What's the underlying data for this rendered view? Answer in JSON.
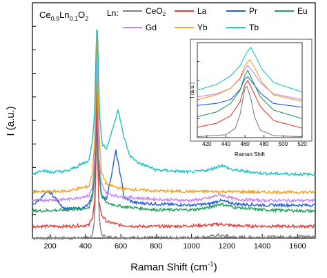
{
  "chart_data": [
    {
      "type": "line",
      "formula": [
        "Ce",
        "0.9",
        "Ln",
        "0.1",
        "O",
        "2"
      ],
      "legend_prefix": "Ln:",
      "xlabel": "Raman Shift (cm",
      "xlabel_sup": "-1",
      "xlabel_close": ")",
      "ylabel": "I (a.u.)",
      "xlim": [
        100,
        1700
      ],
      "ylim": [
        0,
        10
      ],
      "x_ticks": [
        200,
        400,
        600,
        800,
        1000,
        1200,
        1400,
        1600
      ],
      "y_ticks_labeled": false,
      "grid": false,
      "legend_location": "top",
      "series": [
        {
          "name": "CeO2",
          "label_main": "CeO",
          "label_sub": "2",
          "color": "#7f7f7f",
          "baseline": 0.0,
          "x": [
            100,
            300,
            420,
            440,
            452,
            460,
            465,
            470,
            478,
            490,
            520,
            600,
            800,
            1000,
            1100,
            1150,
            1180,
            1250,
            1400,
            1550,
            1600,
            1700
          ],
          "y": [
            0.0,
            0.0,
            0.02,
            0.15,
            0.8,
            3.4,
            8.4,
            3.4,
            0.8,
            0.15,
            0.04,
            0.02,
            0.02,
            0.02,
            0.06,
            0.12,
            0.08,
            0.04,
            0.04,
            0.06,
            0.08,
            0.05
          ]
        },
        {
          "name": "La",
          "color": "#e53935",
          "baseline": 0.45,
          "x": [
            100,
            300,
            420,
            440,
            452,
            460,
            463,
            468,
            476,
            490,
            520,
            600,
            700,
            900,
            1100,
            1160,
            1250,
            1500,
            1700
          ],
          "y": [
            0.5,
            0.5,
            0.55,
            0.9,
            1.6,
            3.6,
            8.0,
            3.7,
            1.6,
            1.0,
            0.7,
            0.55,
            0.5,
            0.5,
            0.55,
            0.6,
            0.52,
            0.5,
            0.5
          ]
        },
        {
          "name": "Pr",
          "color": "#1f5bd6",
          "baseline": 1.5,
          "x": [
            100,
            150,
            190,
            230,
            280,
            380,
            420,
            440,
            452,
            460,
            464,
            468,
            476,
            490,
            520,
            550,
            572,
            595,
            620,
            680,
            800,
            1000,
            1100,
            1160,
            1250,
            1400,
            1700
          ],
          "y": [
            1.4,
            1.7,
            2.0,
            1.7,
            1.25,
            1.25,
            1.45,
            1.9,
            3.0,
            6.0,
            8.5,
            6.5,
            3.0,
            1.8,
            1.7,
            2.8,
            3.7,
            2.8,
            1.7,
            1.5,
            1.45,
            1.4,
            1.45,
            1.6,
            1.45,
            1.4,
            1.4
          ]
        },
        {
          "name": "Eu",
          "color": "#1e9e5a",
          "baseline": 1.15,
          "x": [
            100,
            300,
            420,
            440,
            452,
            460,
            464,
            468,
            476,
            490,
            520,
            600,
            800,
            1000,
            1100,
            1160,
            1250,
            1400,
            1700
          ],
          "y": [
            1.15,
            1.2,
            1.3,
            1.7,
            2.8,
            5.5,
            8.2,
            5.5,
            2.8,
            1.8,
            1.5,
            1.35,
            1.2,
            1.2,
            1.3,
            1.45,
            1.3,
            1.2,
            1.15
          ]
        },
        {
          "name": "Gd",
          "color": "#c77ff0",
          "baseline": 1.6,
          "x": [
            100,
            300,
            420,
            440,
            452,
            460,
            464,
            468,
            476,
            490,
            520,
            600,
            800,
            1000,
            1100,
            1160,
            1250,
            1400,
            1700
          ],
          "y": [
            1.6,
            1.65,
            1.8,
            2.2,
            3.4,
            6.2,
            8.5,
            6.2,
            3.4,
            2.3,
            1.9,
            1.75,
            1.65,
            1.6,
            1.7,
            1.85,
            1.65,
            1.6,
            1.6
          ]
        },
        {
          "name": "Yb",
          "color": "#f0a020",
          "baseline": 1.95,
          "x": [
            100,
            300,
            420,
            440,
            452,
            460,
            465,
            470,
            478,
            490,
            520,
            600,
            800,
            1000,
            1200,
            1400,
            1700
          ],
          "y": [
            1.95,
            2.0,
            2.2,
            2.8,
            4.2,
            7.0,
            8.9,
            7.0,
            4.2,
            2.8,
            2.3,
            2.1,
            2.0,
            1.98,
            1.98,
            1.95,
            1.95
          ]
        },
        {
          "name": "Tb",
          "color": "#19c4c4",
          "baseline": 2.9,
          "x": [
            100,
            150,
            200,
            300,
            420,
            440,
            452,
            460,
            466,
            472,
            480,
            495,
            520,
            560,
            585,
            610,
            650,
            700,
            800,
            1000,
            1100,
            1170,
            1230,
            1400,
            1700
          ],
          "y": [
            2.7,
            2.9,
            2.8,
            2.85,
            3.3,
            4.2,
            5.5,
            8.0,
            9.3,
            7.8,
            5.2,
            4.0,
            3.8,
            4.8,
            5.5,
            4.5,
            3.5,
            3.2,
            2.9,
            2.8,
            2.9,
            3.1,
            2.9,
            2.75,
            2.7
          ]
        }
      ]
    },
    {
      "type": "line",
      "ylabel": "I (a.u.)",
      "xlabel": "Raman Shift",
      "xlim": [
        410,
        520
      ],
      "ylim": [
        0,
        10
      ],
      "x_ticks": [
        420,
        440,
        460,
        480,
        500,
        520
      ],
      "y_ticks_labeled": false,
      "series": [
        {
          "name": "CeO2",
          "color": "#7f7f7f",
          "x": [
            410,
            440,
            450,
            455,
            460,
            462,
            466,
            470,
            476,
            490,
            520
          ],
          "y": [
            0.1,
            0.3,
            1.0,
            2.5,
            5.2,
            5.4,
            4.2,
            2.2,
            0.8,
            0.2,
            0.1
          ]
        },
        {
          "name": "La",
          "color": "#e53935",
          "x": [
            410,
            430,
            445,
            455,
            460,
            463,
            468,
            476,
            490,
            520
          ],
          "y": [
            1.1,
            1.5,
            2.3,
            3.8,
            5.6,
            6.0,
            5.0,
            3.3,
            1.8,
            1.0
          ]
        },
        {
          "name": "Pr",
          "color": "#1f5bd6",
          "x": [
            410,
            430,
            445,
            455,
            460,
            463,
            468,
            476,
            490,
            520
          ],
          "y": [
            3.4,
            3.6,
            4.0,
            5.1,
            6.2,
            6.4,
            5.8,
            4.7,
            3.6,
            3.2
          ]
        },
        {
          "name": "Eu",
          "color": "#1e9e5a",
          "x": [
            410,
            430,
            445,
            455,
            460,
            463,
            468,
            476,
            490,
            520
          ],
          "y": [
            2.2,
            2.7,
            3.6,
            5.0,
            6.6,
            7.1,
            6.0,
            4.3,
            2.9,
            2.0
          ]
        },
        {
          "name": "Gd",
          "color": "#c77ff0",
          "x": [
            410,
            430,
            445,
            455,
            460,
            463,
            468,
            476,
            490,
            520
          ],
          "y": [
            4.3,
            4.6,
            5.2,
            6.2,
            7.2,
            7.6,
            7.0,
            5.8,
            4.6,
            4.0
          ]
        },
        {
          "name": "Yb",
          "color": "#f0a020",
          "x": [
            410,
            430,
            445,
            455,
            460,
            465,
            470,
            478,
            490,
            520
          ],
          "y": [
            4.0,
            4.5,
            5.2,
            6.3,
            7.6,
            8.2,
            7.4,
            5.8,
            4.5,
            3.8
          ]
        },
        {
          "name": "Tb",
          "color": "#19c4c4",
          "x": [
            410,
            430,
            445,
            455,
            462,
            466,
            470,
            478,
            490,
            520
          ],
          "y": [
            5.0,
            5.6,
            6.5,
            7.6,
            9.0,
            9.5,
            8.8,
            7.2,
            5.8,
            4.8
          ]
        }
      ]
    }
  ]
}
